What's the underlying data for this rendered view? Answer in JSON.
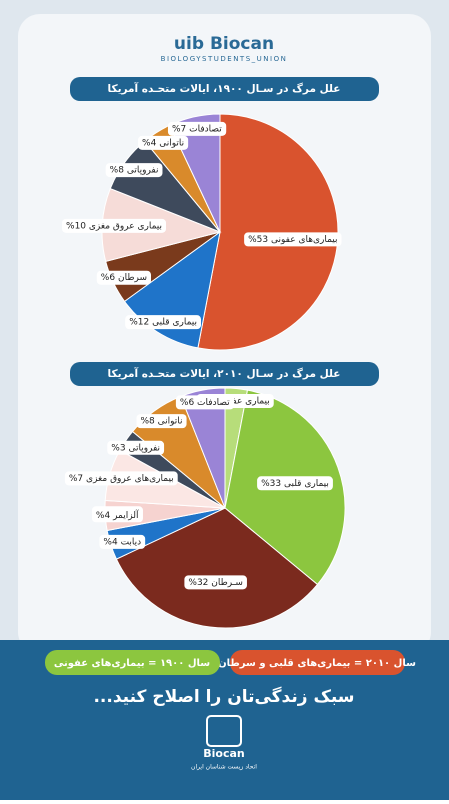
{
  "header": {
    "brand": "uib Biocan",
    "subtitle": "BIOLOGYSTUDENTS_UNION"
  },
  "chart_data": [
    {
      "type": "pie",
      "title": "علل مرگ در سـال ۱۹۰۰، ایالات متحـده آمریکا",
      "categories": [
        "بیماری‌های عفونی",
        "بیماری قلبی",
        "سرطان",
        "بیماری عروق مغزی",
        "نفروپاتی",
        "ناتوانی",
        "تصادفات"
      ],
      "values": [
        53,
        12,
        6,
        10,
        8,
        4,
        7
      ],
      "value_labels": [
        "53%",
        "12%",
        "6%",
        "10%",
        "8%",
        "4%",
        "7%"
      ],
      "colors": [
        "#d9532e",
        "#1f74c9",
        "#7a3a1c",
        "#f6dcd8",
        "#3e4a5c",
        "#d98a2b",
        "#9a84d6"
      ]
    },
    {
      "type": "pie",
      "title": "علل مرگ در سـال ۲۰۱۰، ایالات متحـده آمریکا",
      "categories": [
        "بیماری عفونی",
        "بیماری قلبی",
        "سـرطان",
        "دیابت",
        "آلزایمر",
        "بیماری‌های عروق مغزی",
        "نفروپاتی",
        "ناتوانی",
        "تصادفات"
      ],
      "values": [
        3,
        33,
        32,
        4,
        4,
        7,
        3,
        8,
        6
      ],
      "value_labels": [
        "3%",
        "33%",
        "32%",
        "4%",
        "4%",
        "7%",
        "3%",
        "8%",
        "6%"
      ],
      "colors": [
        "#b7dd7a",
        "#8cc63f",
        "#7b2a1e",
        "#1f74c9",
        "#f6d3d0",
        "#fbe7e4",
        "#3e4a5c",
        "#d98a2b",
        "#9a84d6"
      ]
    }
  ],
  "footer": {
    "pills": [
      "سال ۲۰۱۰ = بیماری‌های قلبی و سرطان",
      "سال ۱۹۰۰ = بیماری‌های عفونی"
    ],
    "slogan": "سبک زندگی‌تان را اصلاح کنید...",
    "logo": "Biocan",
    "org": "اتحاد زیست شناسان ایران"
  }
}
